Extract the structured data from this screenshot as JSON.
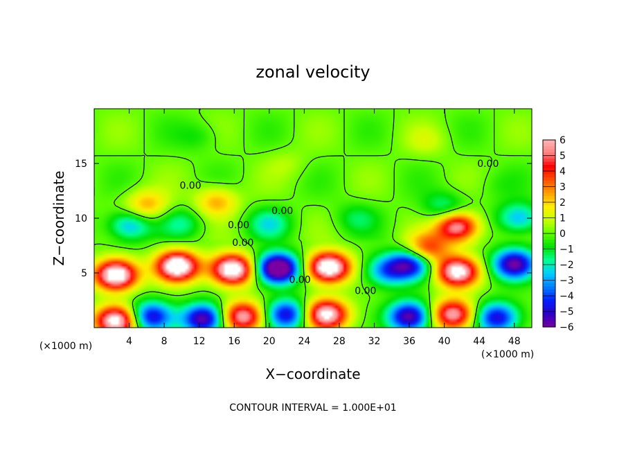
{
  "chart_data": {
    "type": "heatmap",
    "title": "zonal velocity",
    "xlabel": "X−coordinate",
    "ylabel": "Z−coordinate",
    "x_unit": "(×1000 m)",
    "y_unit": "(×1000 m)",
    "xlim": [
      0,
      50
    ],
    "ylim": [
      0,
      20
    ],
    "xticks": [
      4,
      8,
      12,
      16,
      20,
      24,
      28,
      32,
      36,
      40,
      44,
      48
    ],
    "xtick_labels": [
      "4",
      "8",
      "12",
      "16",
      "20",
      "24",
      "28",
      "32",
      "36",
      "40",
      "44",
      "48"
    ],
    "yticks": [
      5,
      10,
      15
    ],
    "ytick_labels": [
      "5",
      "10",
      "15"
    ],
    "colorbar": {
      "min": -6,
      "max": 6,
      "ticks": [
        6,
        5,
        4,
        3,
        2,
        1,
        0,
        -1,
        -2,
        -3,
        -4,
        -5,
        -6
      ],
      "tick_labels": [
        "6",
        "5",
        "4",
        "3",
        "2",
        "1",
        "0",
        "−1",
        "−2",
        "−3",
        "−4",
        "−5",
        "−6"
      ],
      "colors": [
        "#7a00a0",
        "#2a00c8",
        "#0020ff",
        "#0080ff",
        "#00d0ff",
        "#00ff90",
        "#00e000",
        "#60ff00",
        "#c8ff00",
        "#ffee00",
        "#ffa000",
        "#ff5000",
        "#ff0000",
        "#ff8080",
        "#ffb8b8"
      ],
      "saturation_color": "#ffffff"
    },
    "contour_labels": [
      {
        "x": 11,
        "z": 13,
        "label": "0.00"
      },
      {
        "x": 21.5,
        "z": 10.7,
        "label": "0.00"
      },
      {
        "x": 16.5,
        "z": 9.4,
        "label": "0.00"
      },
      {
        "x": 17,
        "z": 7.8,
        "label": "0.00"
      },
      {
        "x": 23.5,
        "z": 4.4,
        "label": "0.00"
      },
      {
        "x": 31,
        "z": 3.4,
        "label": "0.00"
      },
      {
        "x": 45,
        "z": 15,
        "label": "0.00"
      }
    ],
    "contour_interval_note": "CONTOUR INTERVAL = 1.000E+01",
    "field_features": [
      {
        "x": 2.5,
        "z": 4.8,
        "u": 8.0
      },
      {
        "x": 9.5,
        "z": 5.6,
        "u": 8.0
      },
      {
        "x": 15.8,
        "z": 5.3,
        "u": 8.0
      },
      {
        "x": 21.0,
        "z": 5.4,
        "u": -8.0
      },
      {
        "x": 26.8,
        "z": 5.5,
        "u": 8.0
      },
      {
        "x": 33.5,
        "z": 5.2,
        "u": -3.5
      },
      {
        "x": 36.2,
        "z": 5.8,
        "u": -5.0
      },
      {
        "x": 41.5,
        "z": 5.1,
        "u": 7.0
      },
      {
        "x": 48.0,
        "z": 5.8,
        "u": -6.0
      },
      {
        "x": 2.5,
        "z": 0.6,
        "u": 7.0
      },
      {
        "x": 6.5,
        "z": 1.0,
        "u": -5.0
      },
      {
        "x": 12.5,
        "z": 0.8,
        "u": -6.0
      },
      {
        "x": 17.0,
        "z": 1.0,
        "u": 6.0
      },
      {
        "x": 22.0,
        "z": 1.2,
        "u": -5.0
      },
      {
        "x": 26.5,
        "z": 1.2,
        "u": 7.0
      },
      {
        "x": 36.0,
        "z": 1.0,
        "u": -6.0
      },
      {
        "x": 41.0,
        "z": 1.2,
        "u": 6.0
      },
      {
        "x": 46.0,
        "z": 0.9,
        "u": -5.0
      },
      {
        "x": 41.5,
        "z": 9.2,
        "u": 6.0
      },
      {
        "x": 38.0,
        "z": 7.2,
        "u": 4.0
      },
      {
        "x": 6.0,
        "z": 11.2,
        "u": 2.5
      },
      {
        "x": 14.0,
        "z": 11.5,
        "u": 2.5
      },
      {
        "x": 4.0,
        "z": 9.3,
        "u": -3.0
      },
      {
        "x": 10.0,
        "z": 9.5,
        "u": -1.5
      },
      {
        "x": 20.0,
        "z": 9.5,
        "u": -2.0
      },
      {
        "x": 30.0,
        "z": 10.0,
        "u": -1.2
      },
      {
        "x": 40.0,
        "z": 11.0,
        "u": -1.8
      },
      {
        "x": 48.5,
        "z": 10.0,
        "u": -3.0
      },
      {
        "x": 12.0,
        "z": 17.5,
        "u": -0.8
      },
      {
        "x": 38.0,
        "z": 17.0,
        "u": 0.8
      },
      {
        "x": 22.0,
        "z": 15.0,
        "u": 0.6
      },
      {
        "x": 46.0,
        "z": 13.0,
        "u": -0.4
      }
    ]
  }
}
